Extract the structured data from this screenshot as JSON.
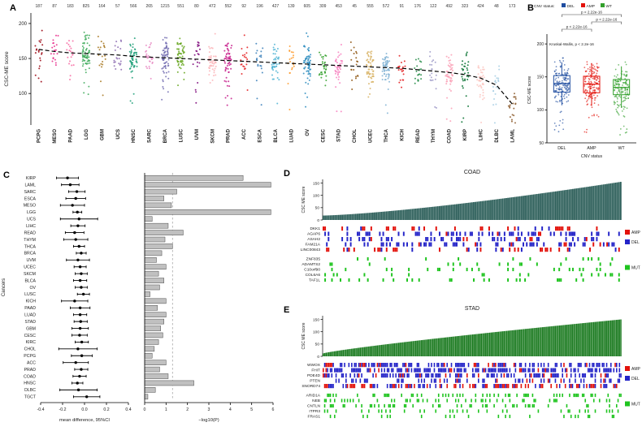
{
  "figure": {
    "panel_labels": {
      "a": "A",
      "b": "B",
      "c": "C",
      "d": "D",
      "e": "E"
    }
  },
  "chart_data": [
    {
      "id": "panelA",
      "type": "scatter",
      "ylabel": "CSC-ME score",
      "ylim": [
        55,
        215
      ],
      "yticks": [
        100,
        150,
        200
      ],
      "categories": [
        "PCPG",
        "MESO",
        "PAAD",
        "LGG",
        "GBM",
        "UCS",
        "HNSC",
        "SARC",
        "BRCA",
        "LUSC",
        "UVM",
        "SKCM",
        "PRAD",
        "ACC",
        "ESCA",
        "BLCA",
        "LUAD",
        "OV",
        "CESC",
        "STAD",
        "CHOL",
        "UCEC",
        "THCA",
        "KICH",
        "READ",
        "THYM",
        "COAD",
        "KIRP",
        "LIHC",
        "DLBC",
        "LAML"
      ],
      "counts": [
        187,
        87,
        183,
        825,
        164,
        57,
        566,
        265,
        1215,
        551,
        80,
        472,
        552,
        92,
        196,
        427,
        139,
        605,
        309,
        453,
        45,
        555,
        572,
        91,
        176,
        122,
        492,
        323,
        424,
        48,
        173
      ],
      "medians": [
        163,
        160,
        158,
        157,
        156,
        155,
        153,
        152,
        151,
        150,
        149,
        148,
        147,
        146,
        145,
        144,
        143,
        142,
        141,
        140,
        139,
        138,
        137,
        136,
        134,
        132,
        130,
        127,
        122,
        112,
        85
      ],
      "colors": [
        "#99000d",
        "#e7298a",
        "#f768a1",
        "#41ab5d",
        "#a6761d",
        "#8c6bb1",
        "#1b9e77",
        "#e78ac3",
        "#7570b3",
        "#66a61e",
        "#7a0177",
        "#fbb4b9",
        "#c51b8a",
        "#e41a1c",
        "#377eb8",
        "#4eb3d3",
        "#fe9929",
        "#2b8cbe",
        "#33a02c",
        "#f781bf",
        "#8c510a",
        "#d8b365",
        "#80b1d3",
        "#e31a1c",
        "#238b45",
        "#9e9ac8",
        "#fa9fb5",
        "#006d2c",
        "#fcc5c0",
        "#a6cee3",
        "#8c5a2b"
      ],
      "trendline": "dashed-median"
    },
    {
      "id": "panelB",
      "type": "boxjitter",
      "legend_title": "CNV status",
      "groups": [
        "DEL",
        "AMP",
        "WT"
      ],
      "colors": [
        "#1f4da0",
        "#e3120b",
        "#33a02c"
      ],
      "medians": [
        140,
        139,
        134
      ],
      "q1": [
        127,
        126,
        123
      ],
      "q3": [
        152,
        151,
        146
      ],
      "ylabel": "CSC-ME score",
      "xlabel": "CNV status",
      "ylim": [
        50,
        210
      ],
      "yticks": [
        50,
        100,
        150,
        200
      ],
      "pvalues": [
        "p < 2.22e-16",
        "p < 2.22e-16",
        "p < 2.22e-16"
      ],
      "kruskal": "Kruskal-Wallis, p < 2.2e-16"
    },
    {
      "id": "panelC",
      "type": "forest+bar",
      "ylabel": "Cancers",
      "xlabel_forest": "mean difference, 95%CI",
      "xlabel_bar": "−log10(P)",
      "forest_xlim": [
        -0.4,
        0.4
      ],
      "forest_ticks": [
        -0.4,
        -0.2,
        0,
        0.2,
        0.4
      ],
      "bar_xlim": [
        0,
        6
      ],
      "bar_ticks": [
        0,
        1,
        2,
        3,
        4,
        5,
        6
      ],
      "sig_threshold": 1.301,
      "rows": [
        {
          "cancer": "KIRP",
          "mean": -0.155,
          "lo": -0.255,
          "hi": -0.055,
          "neglogp": 4.6
        },
        {
          "cancer": "LAML",
          "mean": -0.13,
          "lo": -0.21,
          "hi": -0.05,
          "neglogp": 5.9
        },
        {
          "cancer": "SARC",
          "mean": -0.07,
          "lo": -0.145,
          "hi": 0.005,
          "neglogp": 1.5
        },
        {
          "cancer": "ESCA",
          "mean": -0.08,
          "lo": -0.17,
          "hi": 0.01,
          "neglogp": 0.9
        },
        {
          "cancer": "MESO",
          "mean": -0.11,
          "lo": -0.22,
          "hi": 0.0,
          "neglogp": 1.25
        },
        {
          "cancer": "LGG",
          "mean": -0.065,
          "lo": -0.105,
          "hi": -0.025,
          "neglogp": 5.9
        },
        {
          "cancer": "UCS",
          "mean": -0.05,
          "lo": -0.22,
          "hi": 0.12,
          "neglogp": 0.35
        },
        {
          "cancer": "LIHC",
          "mean": -0.06,
          "lo": -0.125,
          "hi": 0.005,
          "neglogp": 1.1
        },
        {
          "cancer": "READ",
          "mean": -0.09,
          "lo": -0.175,
          "hi": -0.005,
          "neglogp": 1.8
        },
        {
          "cancer": "THYM",
          "mean": -0.08,
          "lo": -0.19,
          "hi": 0.03,
          "neglogp": 0.95
        },
        {
          "cancer": "THCA",
          "mean": -0.05,
          "lo": -0.1,
          "hi": 0.0,
          "neglogp": 1.3
        },
        {
          "cancer": "BRCA",
          "mean": -0.03,
          "lo": -0.075,
          "hi": 0.015,
          "neglogp": 0.8
        },
        {
          "cancer": "UVM",
          "mean": -0.06,
          "lo": -0.165,
          "hi": 0.045,
          "neglogp": 0.55
        },
        {
          "cancer": "UCEC",
          "mean": -0.04,
          "lo": -0.095,
          "hi": 0.015,
          "neglogp": 1.0
        },
        {
          "cancer": "SKCM",
          "mean": -0.03,
          "lo": -0.085,
          "hi": 0.025,
          "neglogp": 0.65
        },
        {
          "cancer": "BLCA",
          "mean": -0.04,
          "lo": -0.1,
          "hi": 0.02,
          "neglogp": 0.9
        },
        {
          "cancer": "OV",
          "mean": -0.03,
          "lo": -0.085,
          "hi": 0.025,
          "neglogp": 0.7
        },
        {
          "cancer": "LUSC",
          "mean": -0.01,
          "lo": -0.065,
          "hi": 0.045,
          "neglogp": 0.25
        },
        {
          "cancer": "KICH",
          "mean": -0.09,
          "lo": -0.21,
          "hi": 0.03,
          "neglogp": 1.0
        },
        {
          "cancer": "PAAD",
          "mean": -0.04,
          "lo": -0.13,
          "hi": 0.05,
          "neglogp": 0.6
        },
        {
          "cancer": "LUAD",
          "mean": -0.04,
          "lo": -0.1,
          "hi": 0.02,
          "neglogp": 1.0
        },
        {
          "cancer": "STAD",
          "mean": -0.035,
          "lo": -0.095,
          "hi": 0.025,
          "neglogp": 0.9
        },
        {
          "cancer": "GBM",
          "mean": -0.04,
          "lo": -0.115,
          "hi": 0.035,
          "neglogp": 0.75
        },
        {
          "cancer": "CESC",
          "mean": -0.045,
          "lo": -0.115,
          "hi": 0.025,
          "neglogp": 0.85
        },
        {
          "cancer": "KIRC",
          "mean": -0.025,
          "lo": -0.085,
          "hi": 0.035,
          "neglogp": 0.65
        },
        {
          "cancer": "CHOL",
          "mean": -0.06,
          "lo": -0.235,
          "hi": 0.115,
          "neglogp": 0.45
        },
        {
          "cancer": "PCPG",
          "mean": -0.025,
          "lo": -0.12,
          "hi": 0.07,
          "neglogp": 0.35
        },
        {
          "cancer": "ACC",
          "mean": -0.08,
          "lo": -0.195,
          "hi": 0.035,
          "neglogp": 1.0
        },
        {
          "cancer": "PRAD",
          "mean": -0.03,
          "lo": -0.09,
          "hi": 0.03,
          "neglogp": 0.7
        },
        {
          "cancer": "COAD",
          "mean": -0.045,
          "lo": -0.105,
          "hi": 0.015,
          "neglogp": 1.1
        },
        {
          "cancer": "HNSC",
          "mean": -0.065,
          "lo": -0.115,
          "hi": -0.015,
          "neglogp": 2.3
        },
        {
          "cancer": "DLBC",
          "mean": -0.055,
          "lo": -0.225,
          "hi": 0.115,
          "neglogp": 0.5
        },
        {
          "cancer": "TGCT",
          "mean": 0.02,
          "lo": -0.1,
          "hi": 0.14,
          "neglogp": 0.15
        }
      ]
    },
    {
      "id": "panelD",
      "type": "waterfall+oncoprint",
      "title": "COAD",
      "ylabel": "CSC ME score",
      "yticks": [
        0,
        50,
        100,
        150
      ],
      "bar_color": "#2d5f5a",
      "n_samples": 175,
      "score_min": 18,
      "score_max": 155,
      "shape": 1.35,
      "amp_color": "#e3120b",
      "del_color": "#2424c8",
      "mut_color": "#1fc41f",
      "legend_amp": "AMP",
      "legend_del": "DEL",
      "legend_mut": "MUT",
      "cnv_genes": [
        {
          "name": "DKK1",
          "amp": 0.18,
          "del": 0.05
        },
        {
          "name": "AGAP6",
          "amp": 0.05,
          "del": 0.3
        },
        {
          "name": "ASAH2",
          "amp": 0.03,
          "del": 0.28
        },
        {
          "name": "FAM21A",
          "amp": 0.06,
          "del": 0.28
        },
        {
          "name": "LINC00843",
          "amp": 0.15,
          "del": 0.08
        }
      ],
      "mut_genes": [
        {
          "name": "ZNF835",
          "freq": 0.1
        },
        {
          "name": "ADAMTS2",
          "freq": 0.12
        },
        {
          "name": "C10orf90",
          "freq": 0.12
        },
        {
          "name": "COL6A6",
          "freq": 0.12
        },
        {
          "name": "TAF1L",
          "freq": 0.1
        }
      ]
    },
    {
      "id": "panelE",
      "type": "waterfall+oncoprint",
      "title": "STAD",
      "ylabel": "CSC ME score",
      "yticks": [
        0,
        50,
        100,
        150
      ],
      "bar_color": "#1a7a1f",
      "n_samples": 210,
      "score_min": 12,
      "score_max": 150,
      "shape": 0.85,
      "amp_color": "#e3120b",
      "del_color": "#2424c8",
      "mut_color": "#1fc41f",
      "legend_amp": "AMP",
      "legend_del": "DEL",
      "legend_mut": "MUT",
      "cnv_genes": [
        {
          "name": "WWOX",
          "amp": 0.1,
          "del": 0.45
        },
        {
          "name": "FHIT",
          "amp": 0.06,
          "del": 0.5
        },
        {
          "name": "PDE4D",
          "amp": 0.08,
          "del": 0.4
        },
        {
          "name": "PTEN",
          "amp": 0.04,
          "del": 0.3
        },
        {
          "name": "SNORD74",
          "amp": 0.25,
          "del": 0.2
        }
      ],
      "mut_genes": [
        {
          "name": "ARID1A",
          "freq": 0.25
        },
        {
          "name": "NEB",
          "freq": 0.2
        },
        {
          "name": "CNTLN",
          "freq": 0.15
        },
        {
          "name": "ITPR3",
          "freq": 0.15
        },
        {
          "name": "FRAS1",
          "freq": 0.15
        }
      ]
    }
  ]
}
